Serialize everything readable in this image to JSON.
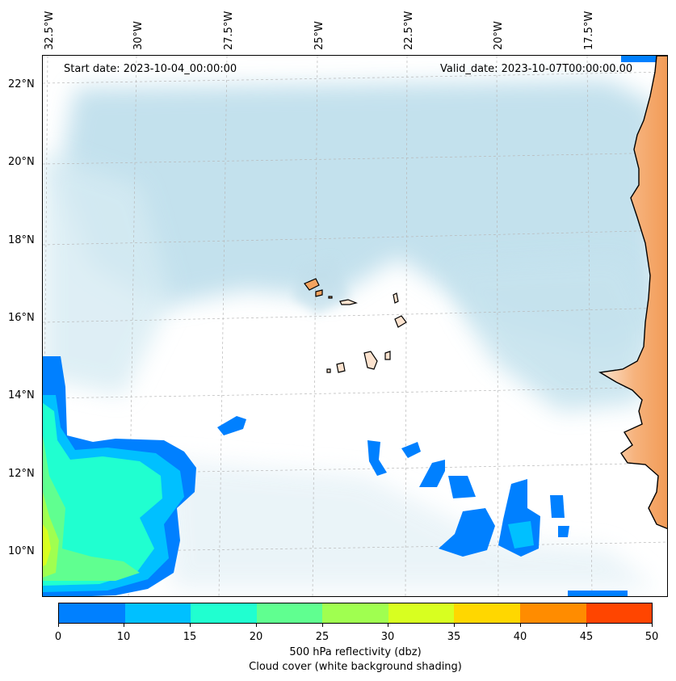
{
  "map": {
    "start_date": "Start date: 2023-10-04_00:00:00",
    "valid_date": "Valid_date: 2023-10-07T00:00:00.00",
    "longitude_labels": [
      "32.5°W",
      "30°W",
      "27.5°W",
      "25°W",
      "22.5°W",
      "20°W",
      "17.5°W"
    ],
    "latitude_labels": [
      "22°N",
      "20°N",
      "18°N",
      "16°N",
      "14°N",
      "12°N",
      "10°N"
    ],
    "colors": {
      "cloud_cover": "#add8e6",
      "land": "#f4a460",
      "coastline": "#000000"
    }
  },
  "colorbar": {
    "ticks": [
      "0",
      "10",
      "15",
      "20",
      "25",
      "30",
      "35",
      "40",
      "45",
      "50"
    ],
    "colors": [
      "#0080ff",
      "#00c0ff",
      "#20ffd0",
      "#60ff90",
      "#a0ff50",
      "#d8ff20",
      "#ffd700",
      "#ff8c00",
      "#ff4500"
    ],
    "label_line1": "500 hPa reflectivity (dbz)",
    "label_line2": "Cloud cover (white background shading)"
  }
}
